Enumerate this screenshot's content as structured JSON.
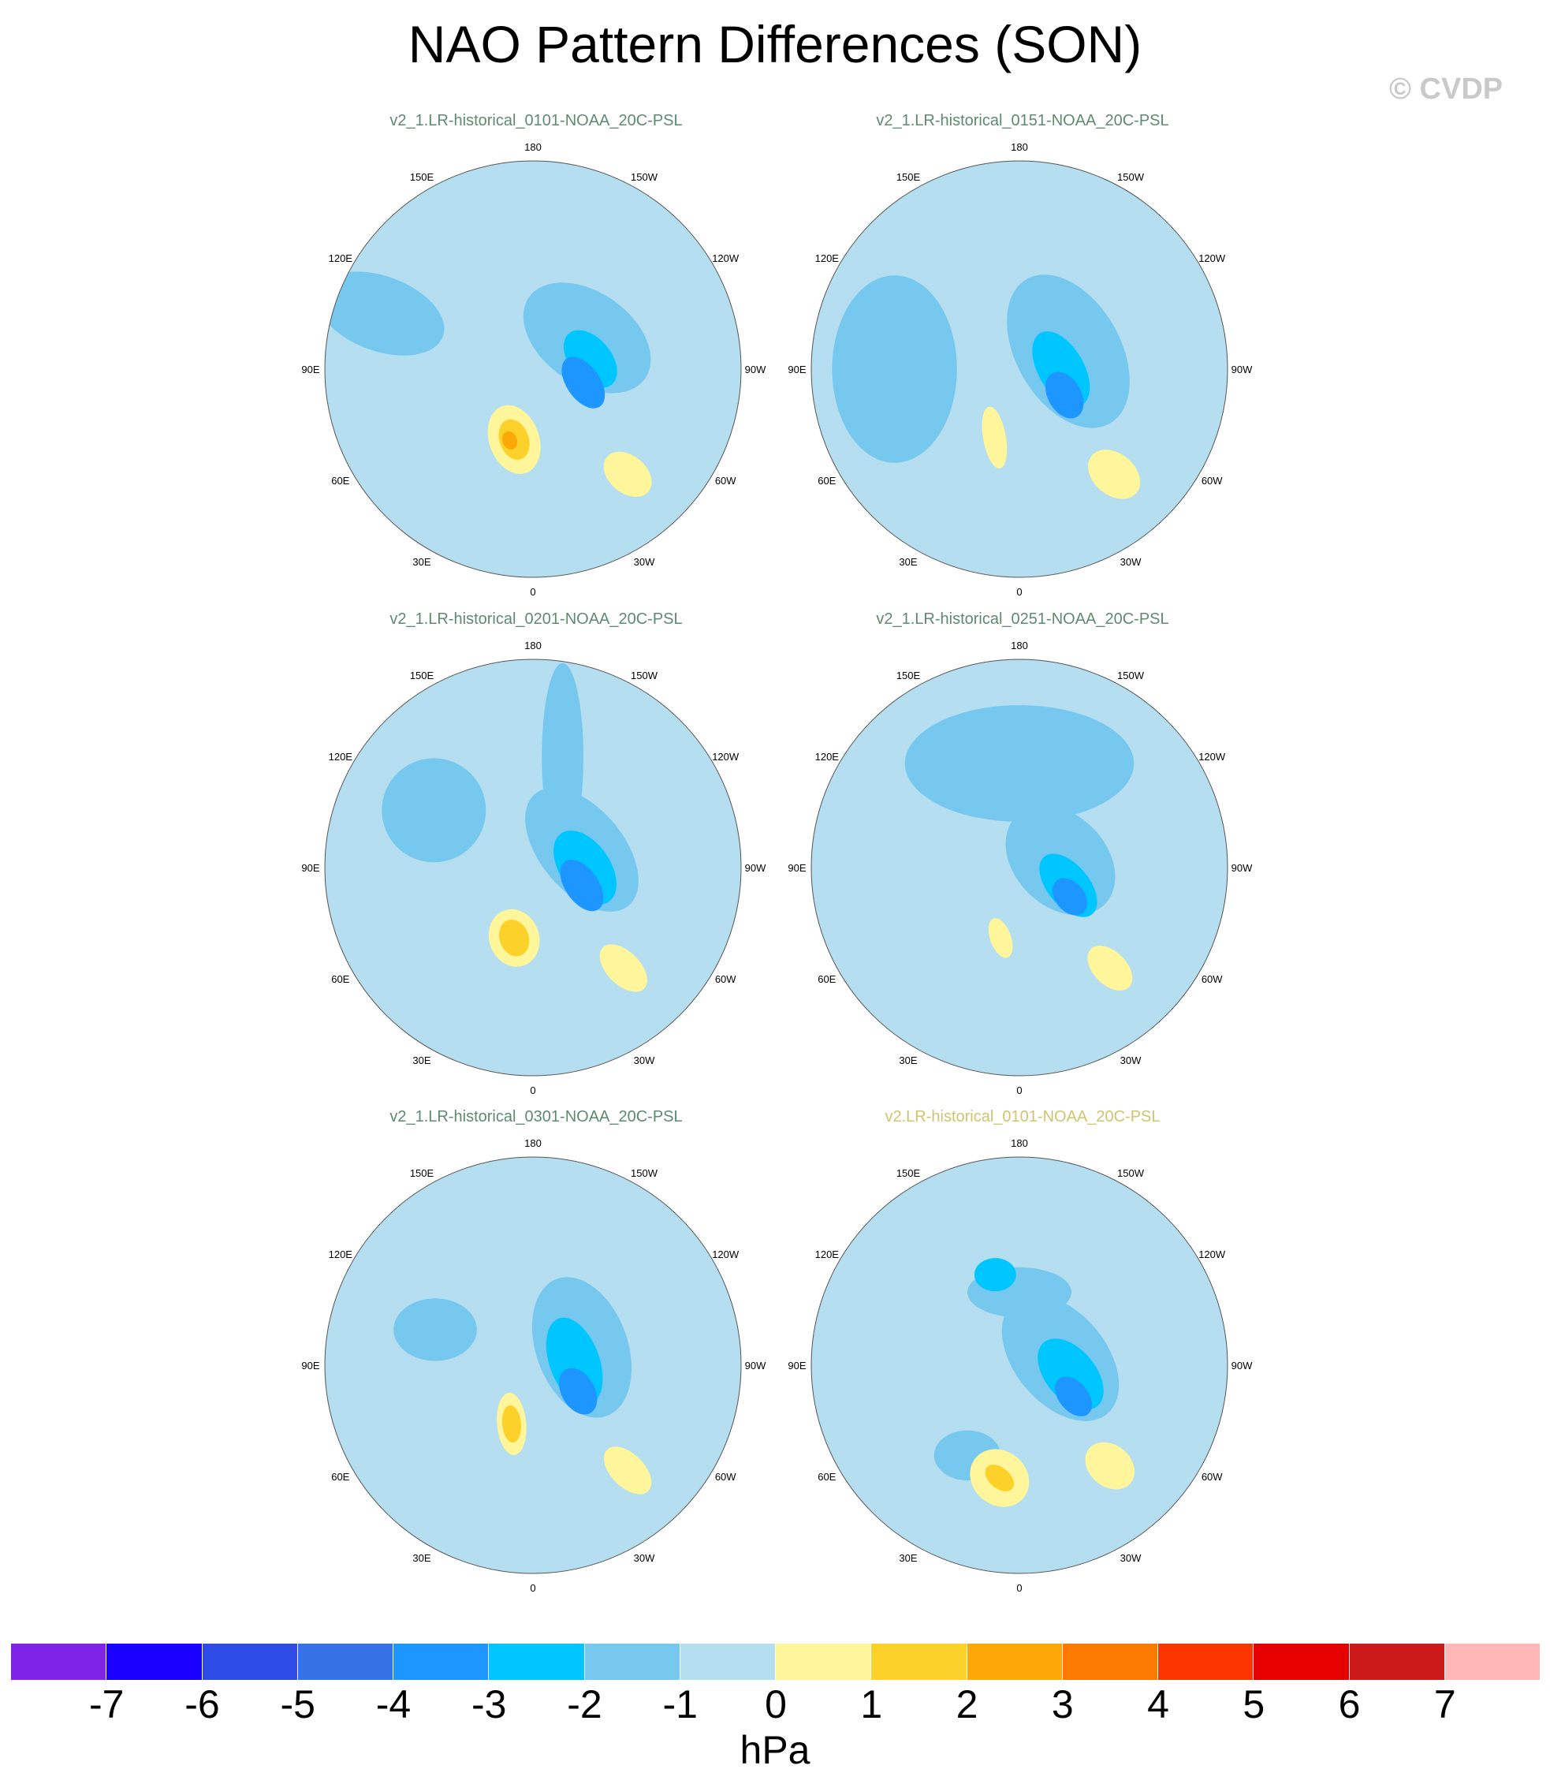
{
  "title": "NAO Pattern Differences (SON)",
  "credit": "© CVDP",
  "chart_data": {
    "type": "heatmap",
    "projection": "north-polar stereographic",
    "variable": "PSL difference",
    "units": "hPa",
    "longitude_labels": [
      "180",
      "150E",
      "120E",
      "90E",
      "60E",
      "30E",
      "0",
      "30W",
      "60W",
      "90W",
      "120W",
      "150W"
    ],
    "colorbar": {
      "levels": [
        -7,
        -6,
        -5,
        -4,
        -3,
        -2,
        -1,
        0,
        1,
        2,
        3,
        4,
        5,
        6,
        7
      ],
      "tick_labels": [
        "-7",
        "-6",
        "-5",
        "-4",
        "-3",
        "-2",
        "-1",
        "0",
        "1",
        "2",
        "3",
        "4",
        "5",
        "6",
        "7"
      ],
      "colors": [
        "#8023e8",
        "#1a00ff",
        "#2d4ce6",
        "#3672e6",
        "#1e96ff",
        "#00c6ff",
        "#76c8ee",
        "#b5def0",
        "#fff69b",
        "#fcd12a",
        "#fca806",
        "#fd7a00",
        "#fd3500",
        "#e60000",
        "#cc1a1a",
        "#ffb6b6"
      ],
      "units_label": "hPa"
    },
    "panels": [
      {
        "title": "v2_1.LR-historical_0101-NOAA_20C-PSL",
        "title_color": "#5e8b6e",
        "features": [
          {
            "lon": 110,
            "r": 0.78,
            "rx": 0.32,
            "ry": 0.18,
            "rot": 20,
            "level": -1
          },
          {
            "lon": -120,
            "r": 0.3,
            "rx": 0.34,
            "ry": 0.22,
            "rot": 35,
            "level": -1
          },
          {
            "lon": -100,
            "r": 0.28,
            "rx": 0.16,
            "ry": 0.1,
            "rot": 50,
            "level": -2
          },
          {
            "lon": -75,
            "r": 0.25,
            "rx": 0.14,
            "ry": 0.08,
            "rot": 55,
            "level": -3
          },
          {
            "lon": 15,
            "r": 0.35,
            "rx": 0.17,
            "ry": 0.12,
            "rot": 70,
            "level": 1
          },
          {
            "lon": 15,
            "r": 0.35,
            "rx": 0.1,
            "ry": 0.07,
            "rot": 70,
            "level": 2
          },
          {
            "lon": 18,
            "r": 0.36,
            "rx": 0.045,
            "ry": 0.035,
            "rot": 70,
            "level": 3
          },
          {
            "lon": -42,
            "r": 0.68,
            "rx": 0.13,
            "ry": 0.09,
            "rot": 40,
            "level": 1
          }
        ]
      },
      {
        "title": "v2_1.LR-historical_0151-NOAA_20C-PSL",
        "title_color": "#5e8b6e",
        "features": [
          {
            "lon": 90,
            "r": 0.6,
            "rx": 0.3,
            "ry": 0.45,
            "rot": 0,
            "level": -1
          },
          {
            "lon": -110,
            "r": 0.25,
            "rx": 0.4,
            "ry": 0.25,
            "rot": 60,
            "level": -1
          },
          {
            "lon": -90,
            "r": 0.2,
            "rx": 0.2,
            "ry": 0.11,
            "rot": 60,
            "level": -2
          },
          {
            "lon": -60,
            "r": 0.25,
            "rx": 0.12,
            "ry": 0.08,
            "rot": 60,
            "level": -3
          },
          {
            "lon": 20,
            "r": 0.35,
            "rx": 0.15,
            "ry": 0.055,
            "rot": 80,
            "level": 1
          },
          {
            "lon": -42,
            "r": 0.68,
            "rx": 0.14,
            "ry": 0.1,
            "rot": 40,
            "level": 1
          }
        ]
      },
      {
        "title": "v2_1.LR-historical_0201-NOAA_20C-PSL",
        "title_color": "#5e8b6e",
        "features": [
          {
            "lon": 120,
            "r": 0.55,
            "rx": 0.25,
            "ry": 0.25,
            "rot": 0,
            "level": -1
          },
          {
            "lon": -165,
            "r": 0.55,
            "rx": 0.45,
            "ry": 0.1,
            "rot": 90,
            "level": -1
          },
          {
            "lon": -110,
            "r": 0.25,
            "rx": 0.35,
            "ry": 0.2,
            "rot": 50,
            "level": -1
          },
          {
            "lon": -90,
            "r": 0.25,
            "rx": 0.2,
            "ry": 0.12,
            "rot": 55,
            "level": -2
          },
          {
            "lon": -70,
            "r": 0.25,
            "rx": 0.14,
            "ry": 0.08,
            "rot": 55,
            "level": -3
          },
          {
            "lon": 15,
            "r": 0.35,
            "rx": 0.14,
            "ry": 0.12,
            "rot": 70,
            "level": 1
          },
          {
            "lon": 15,
            "r": 0.35,
            "rx": 0.09,
            "ry": 0.07,
            "rot": 70,
            "level": 2
          },
          {
            "lon": -42,
            "r": 0.65,
            "rx": 0.14,
            "ry": 0.08,
            "rot": 45,
            "level": 1
          }
        ]
      },
      {
        "title": "v2_1.LR-historical_0251-NOAA_20C-PSL",
        "title_color": "#5e8b6e",
        "features": [
          {
            "lon": 180,
            "r": 0.5,
            "rx": 0.55,
            "ry": 0.28,
            "rot": 0,
            "level": -1
          },
          {
            "lon": -100,
            "r": 0.2,
            "rx": 0.3,
            "ry": 0.22,
            "rot": 45,
            "level": -1
          },
          {
            "lon": -70,
            "r": 0.25,
            "rx": 0.18,
            "ry": 0.1,
            "rot": 50,
            "level": -2
          },
          {
            "lon": -60,
            "r": 0.28,
            "rx": 0.1,
            "ry": 0.07,
            "rot": 50,
            "level": -3
          },
          {
            "lon": 15,
            "r": 0.35,
            "rx": 0.1,
            "ry": 0.05,
            "rot": 70,
            "level": 1
          },
          {
            "lon": -42,
            "r": 0.65,
            "rx": 0.13,
            "ry": 0.08,
            "rot": 45,
            "level": 1
          }
        ]
      },
      {
        "title": "v2_1.LR-historical_0301-NOAA_20C-PSL",
        "title_color": "#5e8b6e",
        "features": [
          {
            "lon": 110,
            "r": 0.5,
            "rx": 0.2,
            "ry": 0.15,
            "rot": 0,
            "level": -1
          },
          {
            "lon": -110,
            "r": 0.25,
            "rx": 0.35,
            "ry": 0.22,
            "rot": 70,
            "level": -1
          },
          {
            "lon": -95,
            "r": 0.2,
            "rx": 0.22,
            "ry": 0.12,
            "rot": 70,
            "level": -2
          },
          {
            "lon": -60,
            "r": 0.25,
            "rx": 0.12,
            "ry": 0.08,
            "rot": 60,
            "level": -3
          },
          {
            "lon": 20,
            "r": 0.3,
            "rx": 0.15,
            "ry": 0.07,
            "rot": 85,
            "level": 1
          },
          {
            "lon": 20,
            "r": 0.3,
            "rx": 0.09,
            "ry": 0.045,
            "rot": 85,
            "level": 2
          },
          {
            "lon": -42,
            "r": 0.68,
            "rx": 0.14,
            "ry": 0.08,
            "rot": 45,
            "level": 1
          }
        ]
      },
      {
        "title": "v2.LR-historical_0101-NOAA_20C-PSL",
        "title_color": "#d1c46e",
        "features": [
          {
            "lon": 180,
            "r": 0.35,
            "rx": 0.25,
            "ry": 0.12,
            "rot": 0,
            "level": -1
          },
          {
            "lon": 165,
            "r": 0.45,
            "rx": 0.1,
            "ry": 0.08,
            "rot": 0,
            "level": -2
          },
          {
            "lon": 30,
            "r": 0.5,
            "rx": 0.16,
            "ry": 0.12,
            "rot": 0,
            "level": -1
          },
          {
            "lon": -100,
            "r": 0.2,
            "rx": 0.35,
            "ry": 0.22,
            "rot": 50,
            "level": -1
          },
          {
            "lon": -80,
            "r": 0.25,
            "rx": 0.2,
            "ry": 0.12,
            "rot": 50,
            "level": -2
          },
          {
            "lon": -60,
            "r": 0.3,
            "rx": 0.11,
            "ry": 0.07,
            "rot": 50,
            "level": -3
          },
          {
            "lon": 10,
            "r": 0.55,
            "rx": 0.15,
            "ry": 0.13,
            "rot": 40,
            "level": 1
          },
          {
            "lon": 10,
            "r": 0.55,
            "rx": 0.08,
            "ry": 0.05,
            "rot": 40,
            "level": 2
          },
          {
            "lon": -42,
            "r": 0.65,
            "rx": 0.13,
            "ry": 0.1,
            "rot": 40,
            "level": 1
          }
        ]
      }
    ]
  }
}
